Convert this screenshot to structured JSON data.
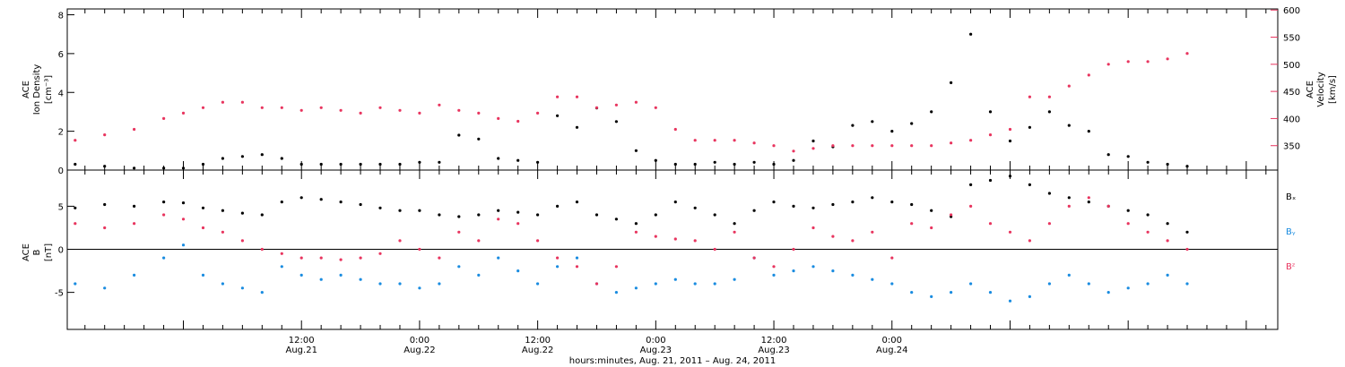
{
  "chart_data": [
    {
      "type": "scatter",
      "panel": "top",
      "ylabel_lines": [
        "ACE",
        "Ion Density",
        "[cm⁻³]"
      ],
      "ylim": [
        0,
        8.3
      ],
      "yticks": [
        0,
        2,
        4,
        6,
        8
      ],
      "y2label_lines": [
        "ACE",
        "Velocity",
        "[km/s]"
      ],
      "y2lim": [
        305,
        602
      ],
      "y2ticks": [
        350,
        400,
        450,
        500,
        550,
        600
      ],
      "colors": {
        "density": "#000000",
        "velocity": "#e8355f"
      },
      "series": [
        {
          "name": "Ion Density",
          "axis": "left",
          "color": "#000000",
          "x": [
            -11,
            -8,
            -5,
            -2,
            0,
            2,
            4,
            6,
            8,
            10,
            12,
            14,
            16,
            18,
            20,
            22,
            24,
            26,
            28,
            30,
            32,
            34,
            36,
            38,
            40,
            42,
            44,
            46,
            48,
            50,
            52,
            54,
            56,
            58,
            60,
            62,
            64,
            66,
            68,
            70,
            72,
            74,
            76,
            78,
            80,
            82,
            84,
            86,
            88,
            90,
            92,
            94,
            96,
            98,
            100,
            102
          ],
          "y": [
            0.3,
            0.2,
            0.1,
            0.1,
            0.1,
            0.3,
            0.6,
            0.7,
            0.8,
            0.6,
            0.3,
            0.3,
            0.3,
            0.3,
            0.3,
            0.3,
            0.4,
            0.4,
            1.8,
            1.6,
            0.6,
            0.5,
            0.4,
            2.8,
            2.2,
            3.2,
            2.5,
            1.0,
            0.5,
            0.3,
            0.3,
            0.4,
            0.3,
            0.4,
            0.3,
            0.5,
            1.5,
            1.2,
            2.3,
            2.5,
            2.0,
            2.4,
            3.0,
            4.5,
            7.0,
            3.0,
            1.5,
            2.2,
            3.0,
            2.3,
            2.0,
            0.8,
            0.7,
            0.4,
            0.3,
            0.2
          ]
        },
        {
          "name": "Velocity",
          "axis": "right",
          "color": "#e8355f",
          "x": [
            -11,
            -8,
            -5,
            -2,
            0,
            2,
            4,
            6,
            8,
            10,
            12,
            14,
            16,
            18,
            20,
            22,
            24,
            26,
            28,
            30,
            32,
            34,
            36,
            38,
            40,
            42,
            44,
            46,
            48,
            50,
            52,
            54,
            56,
            58,
            60,
            62,
            64,
            66,
            68,
            70,
            72,
            74,
            76,
            78,
            80,
            82,
            84,
            86,
            88,
            90,
            92,
            94,
            96,
            98,
            100,
            102
          ],
          "y": [
            360,
            370,
            380,
            400,
            410,
            420,
            430,
            430,
            420,
            420,
            415,
            420,
            415,
            410,
            420,
            415,
            410,
            425,
            415,
            410,
            400,
            395,
            410,
            440,
            440,
            420,
            425,
            430,
            420,
            380,
            360,
            360,
            360,
            355,
            350,
            340,
            345,
            350,
            350,
            350,
            350,
            350,
            350,
            355,
            360,
            370,
            380,
            440,
            440,
            460,
            480,
            500,
            505,
            505,
            510,
            520
          ]
        }
      ]
    },
    {
      "type": "scatter",
      "panel": "bottom",
      "ylabel_lines": [
        "ACE",
        "B",
        "[nT]"
      ],
      "ylim": [
        -9.3,
        9.2
      ],
      "yticks": [
        -5,
        0,
        5
      ],
      "zero_line": true,
      "legend": [
        "Bₓ",
        "Bᵧ",
        "Bᶻ"
      ],
      "legend_placement": "right",
      "colors": {
        "bx": "#000000",
        "by": "#1a8ce0",
        "bz": "#e8355f"
      },
      "series": [
        {
          "name": "Bₓ",
          "color": "#000000",
          "x": [
            -11,
            -8,
            -5,
            -2,
            0,
            2,
            4,
            6,
            8,
            10,
            12,
            14,
            16,
            18,
            20,
            22,
            24,
            26,
            28,
            30,
            32,
            34,
            36,
            38,
            40,
            42,
            44,
            46,
            48,
            50,
            52,
            54,
            56,
            58,
            60,
            62,
            64,
            66,
            68,
            70,
            72,
            74,
            76,
            78,
            80,
            82,
            84,
            86,
            88,
            90,
            92,
            94,
            96,
            98,
            100,
            102
          ],
          "y": [
            4.8,
            5.2,
            5.0,
            5.5,
            5.4,
            4.8,
            4.5,
            4.2,
            4.0,
            5.5,
            6.0,
            5.8,
            5.5,
            5.2,
            4.8,
            4.5,
            4.5,
            4.0,
            3.8,
            4.0,
            4.5,
            4.3,
            4.0,
            5.0,
            5.5,
            4.0,
            3.5,
            3.0,
            4.0,
            5.5,
            4.8,
            4.0,
            3.0,
            4.5,
            5.5,
            5.0,
            4.8,
            5.2,
            5.5,
            6.0,
            5.5,
            5.2,
            4.5,
            3.8,
            7.5,
            8.0,
            8.5,
            7.5,
            6.5,
            6.0,
            5.5,
            5.0,
            4.5,
            4.0,
            3.0,
            2.0
          ]
        },
        {
          "name": "Bᵧ",
          "color": "#1a8ce0",
          "x": [
            -11,
            -8,
            -5,
            -2,
            0,
            2,
            4,
            6,
            8,
            10,
            12,
            14,
            16,
            18,
            20,
            22,
            24,
            26,
            28,
            30,
            32,
            34,
            36,
            38,
            40,
            42,
            44,
            46,
            48,
            50,
            52,
            54,
            56,
            58,
            60,
            62,
            64,
            66,
            68,
            70,
            72,
            74,
            76,
            78,
            80,
            82,
            84,
            86,
            88,
            90,
            92,
            94,
            96,
            98,
            100,
            102
          ],
          "y": [
            -4.0,
            -4.5,
            -3.0,
            -1.0,
            0.5,
            -3.0,
            -4.0,
            -4.5,
            -5.0,
            -2.0,
            -3.0,
            -3.5,
            -3.0,
            -3.5,
            -4.0,
            -4.0,
            -4.5,
            -4.0,
            -2.0,
            -3.0,
            -1.0,
            -2.5,
            -4.0,
            -2.0,
            -1.0,
            -4.0,
            -5.0,
            -4.5,
            -4.0,
            -3.5,
            -4.0,
            -4.0,
            -3.5,
            -1.0,
            -3.0,
            -2.5,
            -2.0,
            -2.5,
            -3.0,
            -3.5,
            -4.0,
            -5.0,
            -5.5,
            -5.0,
            -4.0,
            -5.0,
            -6.0,
            -5.5,
            -4.0,
            -3.0,
            -4.0,
            -5.0,
            -4.5,
            -4.0,
            -3.0,
            -4.0
          ]
        },
        {
          "name": "Bᶻ",
          "color": "#e8355f",
          "x": [
            -11,
            -8,
            -5,
            -2,
            0,
            2,
            4,
            6,
            8,
            10,
            12,
            14,
            16,
            18,
            20,
            22,
            24,
            26,
            28,
            30,
            32,
            34,
            36,
            38,
            40,
            42,
            44,
            46,
            48,
            50,
            52,
            54,
            56,
            58,
            60,
            62,
            64,
            66,
            68,
            70,
            72,
            74,
            76,
            78,
            80,
            82,
            84,
            86,
            88,
            90,
            92,
            94,
            96,
            98,
            100,
            102
          ],
          "y": [
            3.0,
            2.5,
            3.0,
            4.0,
            3.5,
            2.5,
            2.0,
            1.0,
            0.0,
            -0.5,
            -1.0,
            -1.0,
            -1.2,
            -1.0,
            -0.5,
            1.0,
            0.0,
            -1.0,
            2.0,
            1.0,
            3.5,
            3.0,
            1.0,
            -1.0,
            -2.0,
            -4.0,
            -2.0,
            2.0,
            1.5,
            1.2,
            1.0,
            0.0,
            2.0,
            -1.0,
            -2.0,
            0.0,
            2.5,
            1.5,
            1.0,
            2.0,
            -1.0,
            3.0,
            2.5,
            4.0,
            5.0,
            3.0,
            2.0,
            1.0,
            3.0,
            5.0,
            6.0,
            5.0,
            3.0,
            2.0,
            1.0,
            0.0
          ]
        }
      ]
    }
  ],
  "x_axis": {
    "label": "hours:minutes, Aug. 21, 2011 – Aug. 24, 2011",
    "range_hours": [
      -11.8,
      111.2
    ],
    "major_ticks": [
      {
        "hour": 12,
        "line1": "12:00",
        "line2": "Aug.21"
      },
      {
        "hour": 24,
        "line1": "0:00",
        "line2": "Aug.22"
      },
      {
        "hour": 36,
        "line1": "12:00",
        "line2": "Aug.22"
      },
      {
        "hour": 48,
        "line1": "0:00",
        "line2": "Aug.23"
      },
      {
        "hour": 60,
        "line1": "12:00",
        "line2": "Aug.23"
      },
      {
        "hour": 72,
        "line1": "0:00",
        "line2": "Aug.24"
      }
    ]
  }
}
